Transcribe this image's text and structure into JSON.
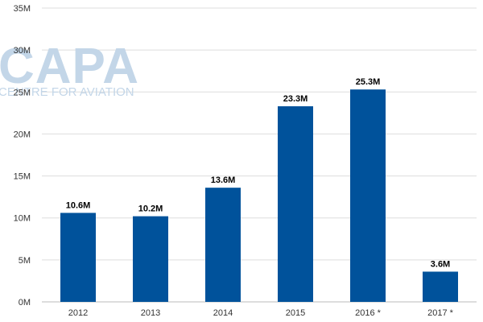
{
  "chart_data": {
    "type": "bar",
    "categories": [
      "2012",
      "2013",
      "2014",
      "2015",
      "2016 *",
      "2017 *"
    ],
    "values": [
      10.6,
      10.2,
      13.6,
      23.3,
      25.3,
      3.6
    ],
    "data_labels": [
      "10.6M",
      "10.2M",
      "13.6M",
      "23.3M",
      "25.3M",
      "3.6M"
    ],
    "ylim": [
      0,
      35
    ],
    "yticks": [
      0,
      5,
      10,
      15,
      20,
      25,
      30,
      35
    ],
    "ytick_labels": [
      "0M",
      "5M",
      "10M",
      "15M",
      "20M",
      "25M",
      "30M",
      "35M"
    ],
    "title": "",
    "xlabel": "",
    "ylabel": "",
    "grid": true,
    "bar_color": "#00529b",
    "grid_color": "#dddddd"
  },
  "watermark": {
    "main": "CAPA",
    "sub": "CENTRE FOR AVIATION",
    "color": "#c3d6e8"
  }
}
